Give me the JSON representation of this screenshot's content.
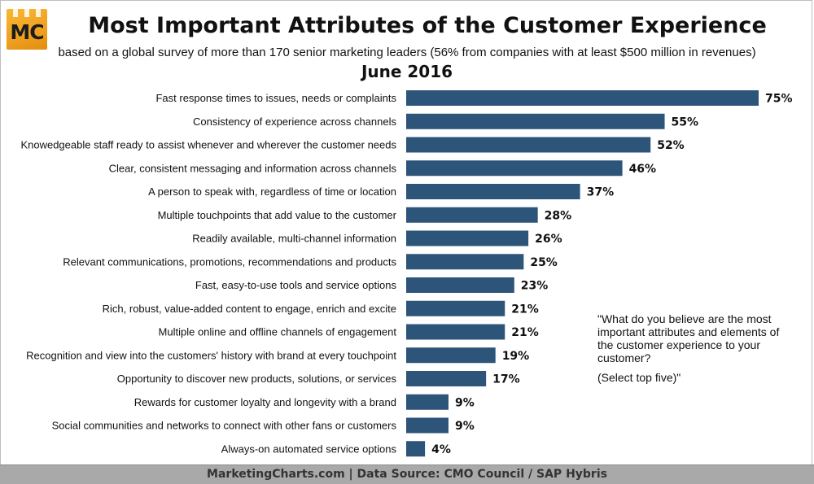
{
  "logo": {
    "text": "MC"
  },
  "header": {
    "title": "Most Important Attributes of the Customer Experience",
    "subtitle": "based on a global survey of more than 170 senior marketing leaders (56% from companies with at least $500 million in revenues)",
    "date": "June 2016"
  },
  "question": {
    "text": "\"What do you believe are the most important attributes and elements of the customer experience to your customer?",
    "instruction": "(Select top five)\""
  },
  "footer": {
    "text": "MarketingCharts.com | Data Source: CMO Council / SAP Hybris"
  },
  "colors": {
    "bar": "#2d5479",
    "footer_bg": "#a9a9a9",
    "logo": "#f0a020"
  },
  "chart_data": {
    "type": "bar",
    "orientation": "horizontal",
    "categories": [
      "Fast response times to issues, needs or complaints",
      "Consistency of experience across channels",
      "Knowedgeable staff ready to assist whenever and wherever the customer needs",
      "Clear, consistent messaging and information across channels",
      "A person to speak with, regardless of time or location",
      "Multiple touchpoints that add value to the customer",
      "Readily available, multi-channel information",
      "Relevant communications, promotions, recommendations and products",
      "Fast, easy-to-use tools and service options",
      "Rich, robust, value-added content to engage, enrich and excite",
      "Multiple online and offline channels of engagement",
      "Recognition and view into the customers' history with brand at every touchpoint",
      "Opportunity to discover new products, solutions, or services",
      "Rewards for customer loyalty and longevity with a brand",
      "Social communities and networks to connect with other fans or customers",
      "Always-on automated service options"
    ],
    "values": [
      75,
      55,
      52,
      46,
      37,
      28,
      26,
      25,
      23,
      21,
      21,
      19,
      17,
      9,
      9,
      4
    ],
    "value_labels": [
      "75%",
      "55%",
      "52%",
      "46%",
      "37%",
      "28%",
      "26%",
      "25%",
      "23%",
      "21%",
      "21%",
      "19%",
      "17%",
      "9%",
      "9%",
      "4%"
    ],
    "unit": "%",
    "xlim": [
      0,
      75
    ],
    "grid": false,
    "legend": "none"
  }
}
